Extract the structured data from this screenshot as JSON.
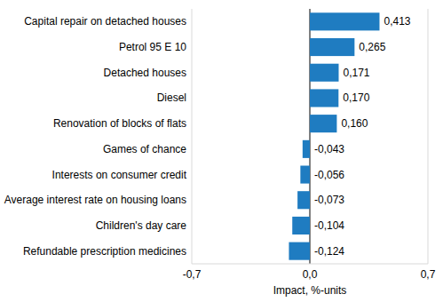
{
  "chart_data": {
    "type": "bar",
    "orientation": "horizontal",
    "categories": [
      "Capital repair on detached houses",
      "Petrol 95 E 10",
      "Detached houses",
      "Diesel",
      "Renovation of blocks of flats",
      "Games of chance",
      "Interests on consumer credit",
      "Average interest rate on housing loans",
      "Children's day care",
      "Refundable prescription medicines"
    ],
    "values": [
      0.413,
      0.265,
      0.171,
      0.17,
      0.16,
      -0.043,
      -0.056,
      -0.073,
      -0.104,
      -0.124
    ],
    "value_labels": [
      "0,413",
      "0,265",
      "0,171",
      "0,170",
      "0,160",
      "-0,043",
      "-0,056",
      "-0,073",
      "-0,104",
      "-0,124"
    ],
    "data_labels": true,
    "color": "#1f7cc1",
    "x_label": "Impact, %-units",
    "xlim": [
      -0.7,
      0.7
    ],
    "xticks": [
      {
        "value": -0.7,
        "label": "-0,7"
      },
      {
        "value": 0,
        "label": "0,0"
      },
      {
        "value": 0.7,
        "label": "0,7"
      }
    ],
    "grid": true
  }
}
